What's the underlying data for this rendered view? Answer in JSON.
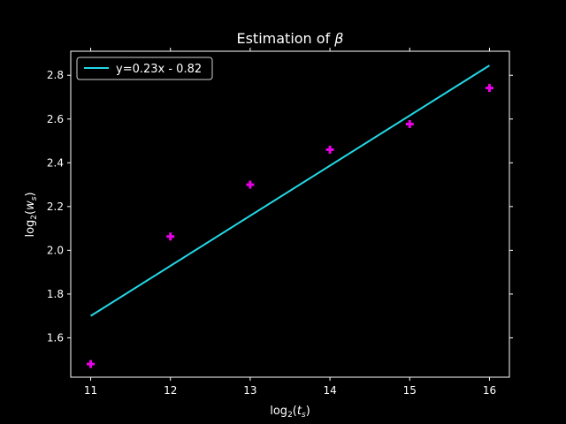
{
  "chart_data": {
    "type": "scatter",
    "title_prefix": "Estimation of",
    "title_symbol": "β",
    "xlabel": {
      "prefix": "log",
      "sub": "2",
      "open": "(",
      "var": "t",
      "var_sub": "s",
      "close": ")"
    },
    "ylabel": {
      "prefix": "log",
      "sub": "2",
      "open": "(",
      "var": "w",
      "var_sub": "s",
      "close": ")"
    },
    "xlim": [
      10.75,
      16.25
    ],
    "ylim": [
      1.42,
      2.91
    ],
    "xticks": [
      11,
      12,
      13,
      14,
      15,
      16
    ],
    "xtick_labels": [
      "11",
      "12",
      "13",
      "14",
      "15",
      "16"
    ],
    "yticks": [
      1.6,
      1.8,
      2.0,
      2.2,
      2.4,
      2.6,
      2.8
    ],
    "ytick_labels": [
      "1.6",
      "1.8",
      "2.0",
      "2.2",
      "2.4",
      "2.6",
      "2.8"
    ],
    "grid": false,
    "legend_position": "top-left",
    "series": [
      {
        "name": "y=0.23x - 0.82",
        "kind": "line",
        "color": "#22d8e6",
        "x": [
          11,
          16
        ],
        "y": [
          1.7,
          2.845
        ]
      },
      {
        "kind": "scatter",
        "marker": "plus",
        "color": "#e800e8",
        "x": [
          11,
          12,
          13,
          14,
          15,
          16
        ],
        "y": [
          1.48,
          2.063,
          2.3,
          2.46,
          2.577,
          2.742
        ]
      }
    ],
    "axis_color": "#ffffff",
    "background": "#000000"
  }
}
